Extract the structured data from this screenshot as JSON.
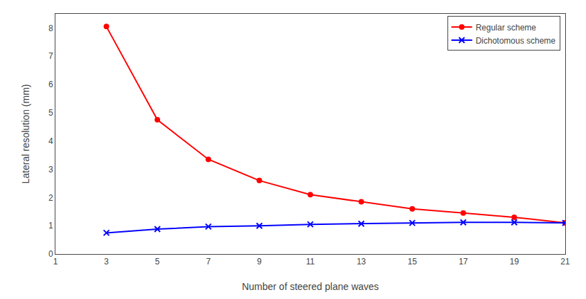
{
  "chart_data": {
    "type": "line",
    "xlabel": "Number of steered plane waves",
    "ylabel": "Lateral resolution (mm)",
    "x": [
      3,
      5,
      7,
      9,
      11,
      13,
      15,
      17,
      19,
      21
    ],
    "series": [
      {
        "name": "Regular scheme",
        "color": "#ff0000",
        "marker": "circle",
        "values": [
          8.05,
          4.75,
          3.35,
          2.6,
          2.1,
          1.85,
          1.6,
          1.45,
          1.3,
          1.1
        ]
      },
      {
        "name": "Dichotomous scheme",
        "color": "#0000ff",
        "marker": "x",
        "values": [
          0.75,
          0.88,
          0.97,
          1.0,
          1.05,
          1.07,
          1.1,
          1.12,
          1.12,
          1.1
        ]
      }
    ],
    "xlim": [
      1,
      21
    ],
    "ylim": [
      0,
      8.5
    ],
    "xticks": [
      1,
      3,
      5,
      7,
      9,
      11,
      13,
      15,
      17,
      19,
      21
    ],
    "yticks": [
      0,
      1,
      2,
      3,
      4,
      5,
      6,
      7,
      8
    ],
    "grid": false,
    "legend": "upper right"
  }
}
